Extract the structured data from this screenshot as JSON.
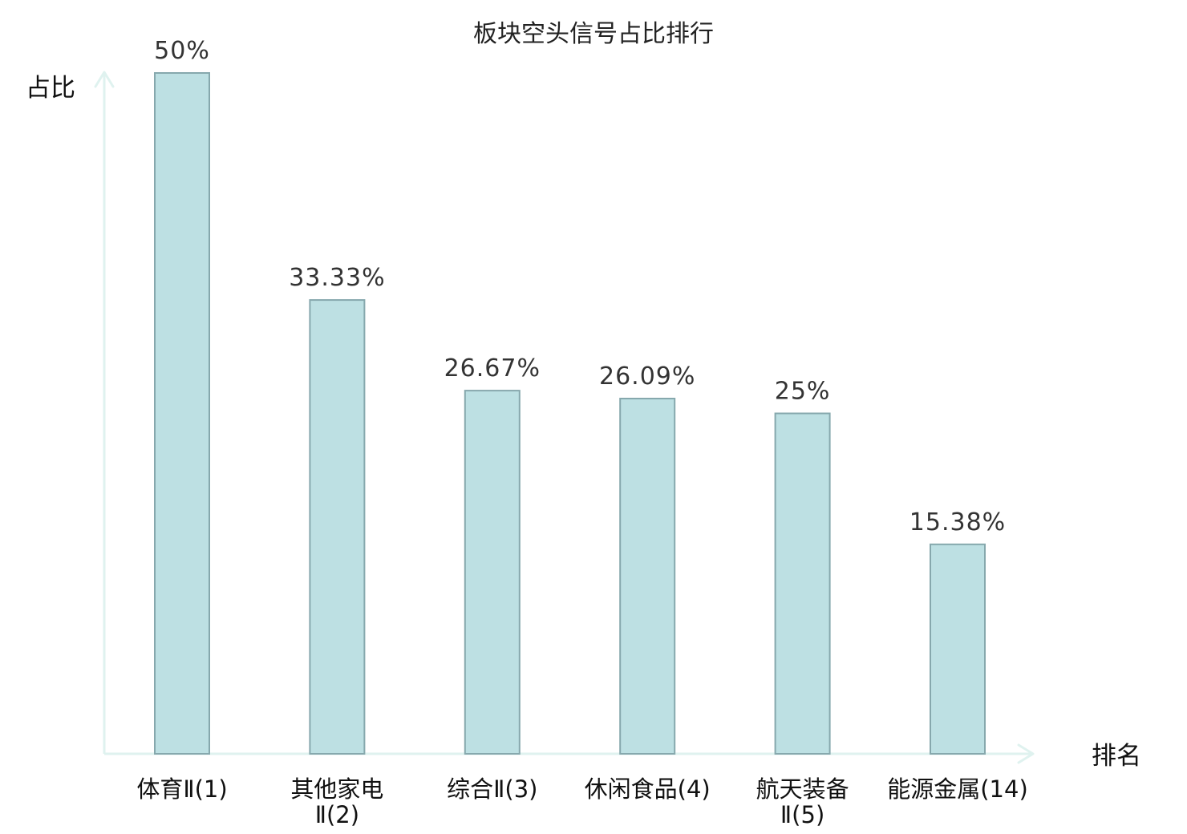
{
  "chart_data": {
    "type": "bar",
    "title": "板块空头信号占比排行",
    "ylabel": "占比",
    "xlabel": "排名",
    "categories": [
      {
        "name": "体育Ⅱ",
        "rank": "(1)",
        "lines": [
          "体育Ⅱ(1)"
        ],
        "highlight": false
      },
      {
        "name": "其他家电Ⅱ",
        "rank": "(2)",
        "lines": [
          "其他家电",
          "Ⅱ(2)"
        ],
        "highlight": false
      },
      {
        "name": "综合Ⅱ",
        "rank": "(3)",
        "lines": [
          "综合Ⅱ(3)"
        ],
        "highlight": false
      },
      {
        "name": "休闲食品",
        "rank": "(4)",
        "lines": [
          "休闲食品(4)"
        ],
        "highlight": false
      },
      {
        "name": "航天装备Ⅱ",
        "rank": "(5)",
        "lines": [
          "航天装备",
          "Ⅱ(5)"
        ],
        "highlight": false
      },
      {
        "name": "能源金属",
        "rank": "(14)",
        "lines": [
          "能源金属(14)"
        ],
        "highlight": true
      }
    ],
    "values": [
      50,
      33.33,
      26.67,
      26.09,
      25,
      15.38
    ],
    "value_labels": [
      "50%",
      "33.33%",
      "26.67%",
      "26.09%",
      "25%",
      "15.38%"
    ],
    "ylim": [
      0,
      50
    ],
    "grid": false,
    "legend": "none"
  },
  "colors": {
    "bar_fill": "#bde0e3",
    "bar_stroke": "#86a8ad",
    "axis": "#dff2ef",
    "highlight": "#e01010",
    "text": "#111111",
    "value_text": "#333333"
  }
}
